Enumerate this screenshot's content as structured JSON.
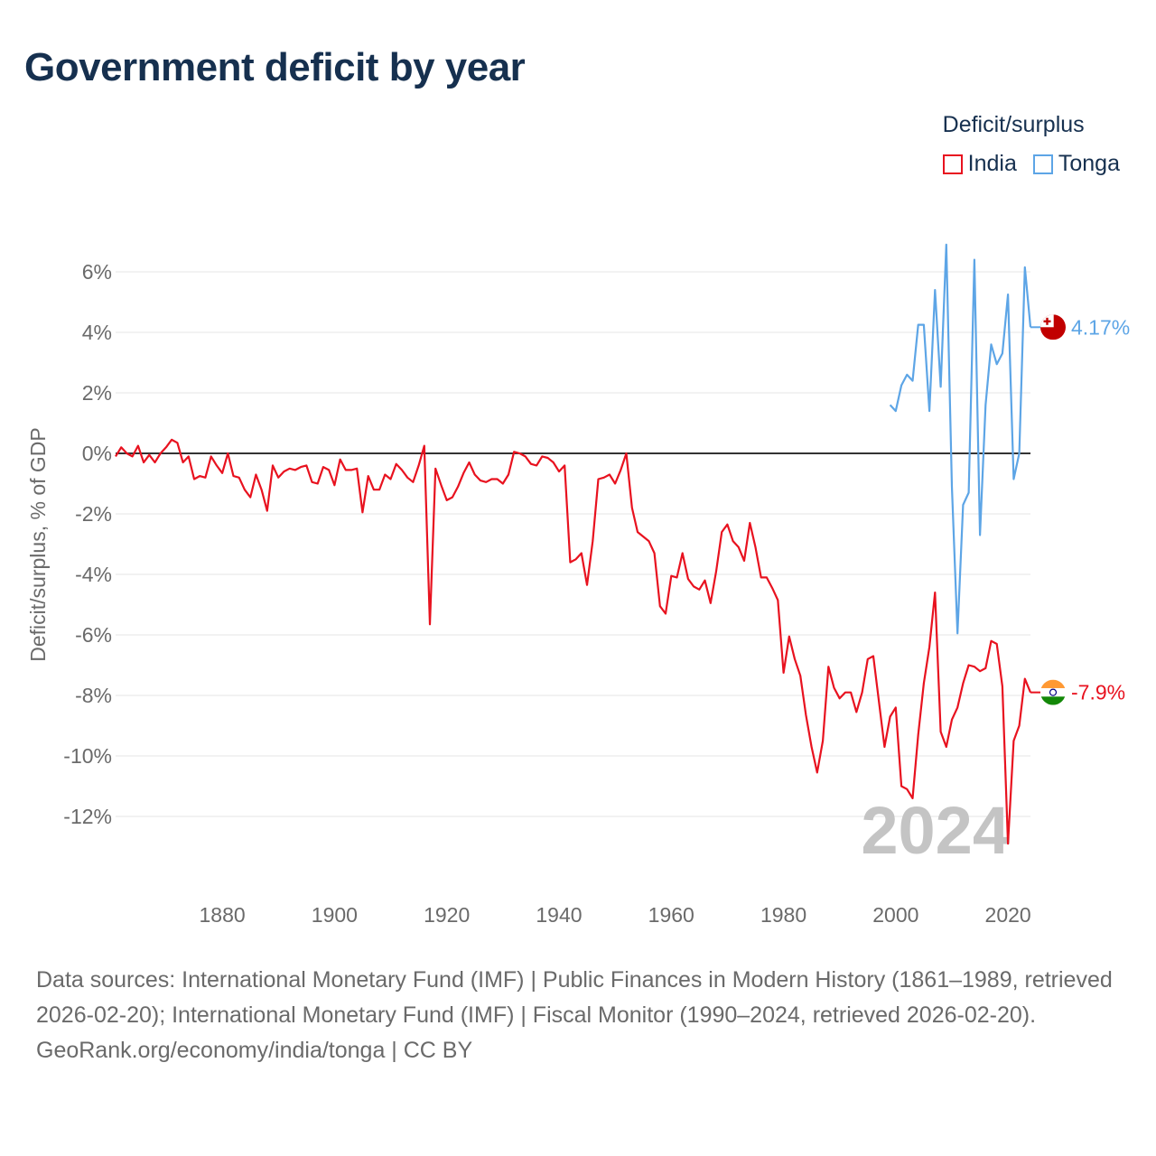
{
  "title": "Government deficit by year",
  "legend": {
    "title": "Deficit/surplus",
    "items": [
      {
        "name": "India",
        "color": "#e8121f"
      },
      {
        "name": "Tonga",
        "color": "#5da5e6"
      }
    ]
  },
  "footer": {
    "sources": "Data sources: International Monetary Fund (IMF) | Public Finances in Modern History (1861–1989, retrieved 2026-02-20); International Monetary Fund (IMF) | Fiscal Monitor (1990–2024, retrieved 2026-02-20).",
    "credit": "GeoRank.org/economy/india/tonga | CC BY"
  },
  "chart_data": {
    "type": "line",
    "title": "Government deficit by year",
    "xlabel": "",
    "ylabel": "Deficit/surplus, % of GDP",
    "xlim": [
      1861,
      2024
    ],
    "ylim": [
      -13.5,
      7
    ],
    "xticks": [
      1880,
      1900,
      1920,
      1940,
      1960,
      1980,
      2000,
      2020
    ],
    "yticks": [
      6,
      4,
      2,
      0,
      -2,
      -4,
      -6,
      -8,
      -10,
      -12
    ],
    "ytick_labels": [
      "6%",
      "4%",
      "2%",
      "0%",
      "-2%",
      "-4%",
      "-6%",
      "-8%",
      "-10%",
      "-12%"
    ],
    "grid": true,
    "year_watermark": "2024",
    "series": [
      {
        "name": "India",
        "color": "#e8121f",
        "end_label": "-7.9%",
        "points": [
          [
            1861,
            -0.1
          ],
          [
            1862,
            0.2
          ],
          [
            1863,
            0.0
          ],
          [
            1864,
            -0.1
          ],
          [
            1865,
            0.25
          ],
          [
            1866,
            -0.3
          ],
          [
            1867,
            -0.05
          ],
          [
            1868,
            -0.3
          ],
          [
            1869,
            0.0
          ],
          [
            1870,
            0.2
          ],
          [
            1871,
            0.45
          ],
          [
            1872,
            0.35
          ],
          [
            1873,
            -0.3
          ],
          [
            1874,
            -0.1
          ],
          [
            1875,
            -0.85
          ],
          [
            1876,
            -0.75
          ],
          [
            1877,
            -0.8
          ],
          [
            1878,
            -0.1
          ],
          [
            1879,
            -0.4
          ],
          [
            1880,
            -0.65
          ],
          [
            1881,
            0.0
          ],
          [
            1882,
            -0.75
          ],
          [
            1883,
            -0.8
          ],
          [
            1884,
            -1.2
          ],
          [
            1885,
            -1.45
          ],
          [
            1886,
            -0.7
          ],
          [
            1887,
            -1.2
          ],
          [
            1888,
            -1.9
          ],
          [
            1889,
            -0.4
          ],
          [
            1890,
            -0.8
          ],
          [
            1891,
            -0.6
          ],
          [
            1892,
            -0.5
          ],
          [
            1893,
            -0.55
          ],
          [
            1894,
            -0.45
          ],
          [
            1895,
            -0.4
          ],
          [
            1896,
            -0.95
          ],
          [
            1897,
            -1.0
          ],
          [
            1898,
            -0.45
          ],
          [
            1899,
            -0.55
          ],
          [
            1900,
            -1.05
          ],
          [
            1901,
            -0.2
          ],
          [
            1902,
            -0.55
          ],
          [
            1903,
            -0.55
          ],
          [
            1904,
            -0.5
          ],
          [
            1905,
            -1.95
          ],
          [
            1906,
            -0.75
          ],
          [
            1907,
            -1.2
          ],
          [
            1908,
            -1.2
          ],
          [
            1909,
            -0.7
          ],
          [
            1910,
            -0.85
          ],
          [
            1911,
            -0.35
          ],
          [
            1912,
            -0.55
          ],
          [
            1913,
            -0.8
          ],
          [
            1914,
            -0.95
          ],
          [
            1915,
            -0.4
          ],
          [
            1916,
            0.25
          ],
          [
            1917,
            -5.65
          ],
          [
            1918,
            -0.5
          ],
          [
            1919,
            -1.05
          ],
          [
            1920,
            -1.55
          ],
          [
            1921,
            -1.45
          ],
          [
            1922,
            -1.1
          ],
          [
            1923,
            -0.65
          ],
          [
            1924,
            -0.3
          ],
          [
            1925,
            -0.7
          ],
          [
            1926,
            -0.9
          ],
          [
            1927,
            -0.95
          ],
          [
            1928,
            -0.85
          ],
          [
            1929,
            -0.85
          ],
          [
            1930,
            -1.0
          ],
          [
            1931,
            -0.7
          ],
          [
            1932,
            0.05
          ],
          [
            1933,
            0.0
          ],
          [
            1934,
            -0.1
          ],
          [
            1935,
            -0.35
          ],
          [
            1936,
            -0.4
          ],
          [
            1937,
            -0.1
          ],
          [
            1938,
            -0.15
          ],
          [
            1939,
            -0.3
          ],
          [
            1940,
            -0.6
          ],
          [
            1941,
            -0.4
          ],
          [
            1942,
            -3.6
          ],
          [
            1943,
            -3.5
          ],
          [
            1944,
            -3.3
          ],
          [
            1945,
            -4.35
          ],
          [
            1946,
            -2.9
          ],
          [
            1947,
            -0.85
          ],
          [
            1948,
            -0.8
          ],
          [
            1949,
            -0.7
          ],
          [
            1950,
            -1.0
          ],
          [
            1951,
            -0.55
          ],
          [
            1952,
            0.0
          ],
          [
            1953,
            -1.8
          ],
          [
            1954,
            -2.6
          ],
          [
            1955,
            -2.75
          ],
          [
            1956,
            -2.9
          ],
          [
            1957,
            -3.3
          ],
          [
            1958,
            -5.05
          ],
          [
            1959,
            -5.3
          ],
          [
            1960,
            -4.05
          ],
          [
            1961,
            -4.1
          ],
          [
            1962,
            -3.3
          ],
          [
            1963,
            -4.15
          ],
          [
            1964,
            -4.4
          ],
          [
            1965,
            -4.5
          ],
          [
            1966,
            -4.2
          ],
          [
            1967,
            -4.95
          ],
          [
            1968,
            -3.9
          ],
          [
            1969,
            -2.6
          ],
          [
            1970,
            -2.35
          ],
          [
            1971,
            -2.9
          ],
          [
            1972,
            -3.1
          ],
          [
            1973,
            -3.55
          ],
          [
            1974,
            -2.3
          ],
          [
            1975,
            -3.1
          ],
          [
            1976,
            -4.1
          ],
          [
            1977,
            -4.1
          ],
          [
            1978,
            -4.45
          ],
          [
            1979,
            -4.85
          ],
          [
            1980,
            -7.25
          ],
          [
            1981,
            -6.05
          ],
          [
            1982,
            -6.8
          ],
          [
            1983,
            -7.35
          ],
          [
            1984,
            -8.65
          ],
          [
            1985,
            -9.7
          ],
          [
            1986,
            -10.55
          ],
          [
            1987,
            -9.5
          ],
          [
            1988,
            -7.05
          ],
          [
            1989,
            -7.75
          ],
          [
            1990,
            -8.1
          ],
          [
            1991,
            -7.9
          ],
          [
            1992,
            -7.9
          ],
          [
            1993,
            -8.55
          ],
          [
            1994,
            -7.9
          ],
          [
            1995,
            -6.8
          ],
          [
            1996,
            -6.7
          ],
          [
            1997,
            -8.2
          ],
          [
            1998,
            -9.7
          ],
          [
            1999,
            -8.7
          ],
          [
            2000,
            -8.4
          ],
          [
            2001,
            -11.0
          ],
          [
            2002,
            -11.1
          ],
          [
            2003,
            -11.4
          ],
          [
            2004,
            -9.3
          ],
          [
            2005,
            -7.6
          ],
          [
            2006,
            -6.4
          ],
          [
            2007,
            -4.6
          ],
          [
            2008,
            -9.2
          ],
          [
            2009,
            -9.7
          ],
          [
            2010,
            -8.8
          ],
          [
            2011,
            -8.4
          ],
          [
            2012,
            -7.6
          ],
          [
            2013,
            -7.0
          ],
          [
            2014,
            -7.05
          ],
          [
            2015,
            -7.2
          ],
          [
            2016,
            -7.1
          ],
          [
            2017,
            -6.2
          ],
          [
            2018,
            -6.3
          ],
          [
            2019,
            -7.7
          ],
          [
            2020,
            -12.9
          ],
          [
            2021,
            -9.5
          ],
          [
            2022,
            -9.0
          ],
          [
            2023,
            -7.45
          ],
          [
            2024,
            -7.9
          ]
        ]
      },
      {
        "name": "Tonga",
        "color": "#5da5e6",
        "end_label": "4.17%",
        "points": [
          [
            1999,
            1.6
          ],
          [
            2000,
            1.4
          ],
          [
            2001,
            2.25
          ],
          [
            2002,
            2.6
          ],
          [
            2003,
            2.4
          ],
          [
            2004,
            4.25
          ],
          [
            2005,
            4.25
          ],
          [
            2006,
            1.4
          ],
          [
            2007,
            5.4
          ],
          [
            2008,
            2.2
          ],
          [
            2009,
            6.9
          ],
          [
            2010,
            -1.1
          ],
          [
            2011,
            -5.95
          ],
          [
            2012,
            -1.7
          ],
          [
            2013,
            -1.3
          ],
          [
            2014,
            6.4
          ],
          [
            2015,
            -2.7
          ],
          [
            2016,
            1.6
          ],
          [
            2017,
            3.6
          ],
          [
            2018,
            2.95
          ],
          [
            2019,
            3.3
          ],
          [
            2020,
            5.25
          ],
          [
            2021,
            -0.85
          ],
          [
            2022,
            0.0
          ],
          [
            2023,
            6.15
          ],
          [
            2024,
            4.17
          ]
        ]
      }
    ]
  }
}
